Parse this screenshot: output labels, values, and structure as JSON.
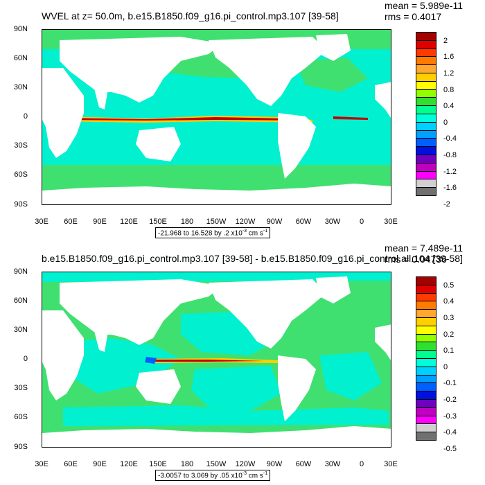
{
  "panels": [
    {
      "title": "WVEL at z=  50.0m, b.e15.B1850.f09_g16.pi_control.mp3.107 [39-58]",
      "mean": "mean = 5.989e-11",
      "rms": "rms = 0.4017",
      "range_text": "-21.968 to 16.528 by .2 x10",
      "range_exp": "-3",
      "range_unit": " cm s",
      "range_unit_exp": "-1",
      "colorbar_labels": [
        "2",
        "1.6",
        "1.2",
        "0.8",
        "0.4",
        "0",
        "-0.4",
        "-0.8",
        "-1.2",
        "-1.6",
        "-2"
      ]
    },
    {
      "title": "b.e15.B1850.f09_g16.pi_control.mp3.107 [39-58] - b.e15.B1850.f09_g16.pi_control.all.104 [39-58]",
      "mean": "mean = 7.489e-11",
      "rms": "rms = 0.04736",
      "range_text": "-3.0057 to 3.069 by .05 x10",
      "range_exp": "-3",
      "range_unit": " cm s",
      "range_unit_exp": "-1",
      "colorbar_labels": [
        "0.5",
        "0.4",
        "0.3",
        "0.2",
        "0.1",
        "0",
        "-0.1",
        "-0.2",
        "-0.3",
        "-0.4",
        "-0.5"
      ]
    }
  ],
  "lat_labels": [
    "90N",
    "60N",
    "30N",
    "0",
    "30S",
    "60S",
    "90S"
  ],
  "lon_labels": [
    "30E",
    "60E",
    "90E",
    "120E",
    "150E",
    "180",
    "150W",
    "120W",
    "90W",
    "60W",
    "30W",
    "0",
    "30E"
  ],
  "colorbar_colors": [
    "#a50000",
    "#e00000",
    "#ff3a00",
    "#ff7a00",
    "#ffa830",
    "#ffd000",
    "#ffff00",
    "#90ff00",
    "#30e030",
    "#00ff90",
    "#00ffd8",
    "#00d0ff",
    "#00a0ff",
    "#0060ff",
    "#0010e0",
    "#7000c0",
    "#c000c0",
    "#ff00ff",
    "#d0d0d0",
    "#707070"
  ],
  "colors": {
    "land": "#ffffff",
    "ocean_base": "#00f0d0",
    "ocean_alt": "#40e070",
    "equator_hot": "#c00000",
    "equator_warm": "#ffd000"
  }
}
